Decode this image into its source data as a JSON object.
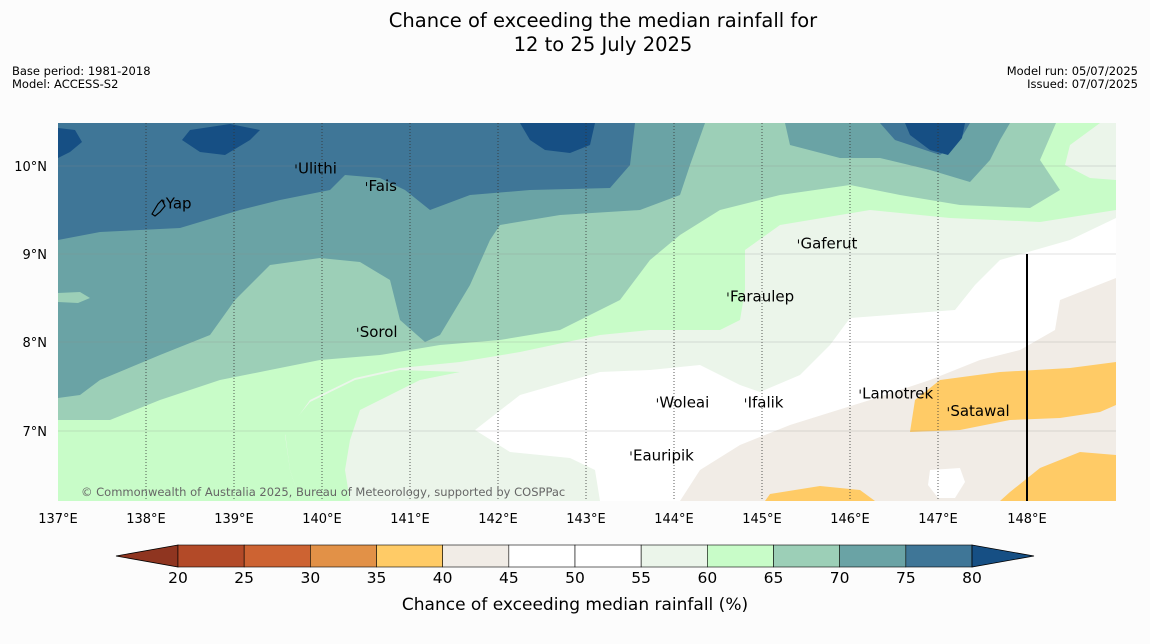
{
  "title": {
    "line1": "Chance of exceeding the median rainfall for",
    "line2": "12 to 25 July 2025"
  },
  "meta_left": {
    "base_period": "Base period: 1981-2018",
    "model": "Model: ACCESS-S2"
  },
  "meta_right": {
    "model_run": "Model run: 05/07/2025",
    "issued": "Issued: 07/07/2025"
  },
  "map": {
    "lon_labels": [
      "137°E",
      "138°E",
      "139°E",
      "140°E",
      "141°E",
      "142°E",
      "143°E",
      "144°E",
      "145°E",
      "146°E",
      "147°E",
      "148°E"
    ],
    "lat_labels": [
      "10°N",
      "9°N",
      "8°N",
      "7°N"
    ],
    "places": [
      {
        "name": "Yap",
        "lon": 138.2,
        "lat": 9.55
      },
      {
        "name": "Ulithi",
        "lon": 139.7,
        "lat": 9.95
      },
      {
        "name": "Fais",
        "lon": 140.5,
        "lat": 9.75
      },
      {
        "name": "Sorol",
        "lon": 140.4,
        "lat": 8.1
      },
      {
        "name": "Gaferut",
        "lon": 145.4,
        "lat": 9.1
      },
      {
        "name": "Faraulep",
        "lon": 144.6,
        "lat": 8.5
      },
      {
        "name": "Lamotrek",
        "lon": 146.1,
        "lat": 7.4
      },
      {
        "name": "Satawal",
        "lon": 147.1,
        "lat": 7.2
      },
      {
        "name": "Woleai",
        "lon": 143.8,
        "lat": 7.3
      },
      {
        "name": "Ifalik",
        "lon": 144.8,
        "lat": 7.3
      },
      {
        "name": "Eauripik",
        "lon": 143.5,
        "lat": 6.7
      }
    ],
    "copyright": "© Commonwealth of Australia 2025, Bureau of Meteorology, supported by COSPPac"
  },
  "colorbar": {
    "ticks": [
      "20",
      "25",
      "30",
      "35",
      "40",
      "45",
      "50",
      "55",
      "60",
      "65",
      "70",
      "75",
      "80"
    ],
    "colors": [
      "#8f3520",
      "#b34a28",
      "#cd6332",
      "#e29147",
      "#ffcb66",
      "#f1ece6",
      "#ffffff",
      "#ffffff",
      "#ebf5ea",
      "#c8fcc8",
      "#9ccfb7",
      "#6aa3a5",
      "#3f7697",
      "#164f84"
    ],
    "title": "Chance of exceeding median rainfall (%)"
  }
}
